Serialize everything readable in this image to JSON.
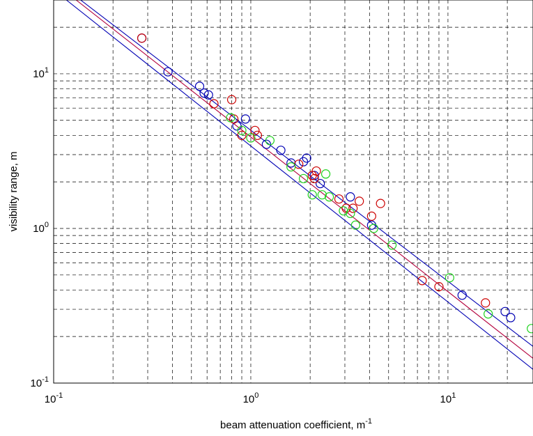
{
  "chart_data": {
    "type": "scatter",
    "xscale": "log",
    "yscale": "log",
    "xlim": [
      0.1,
      27
    ],
    "ylim": [
      0.1,
      30
    ],
    "grid": true,
    "grid_style": "dashed",
    "xlabel": {
      "text": "beam attenuation coefficient, m",
      "sup": "-1"
    },
    "ylabel": "visibility range, m",
    "x_ticks": [
      {
        "base": "10",
        "exp": "-1",
        "value": 0.1
      },
      {
        "base": "10",
        "exp": "0",
        "value": 1
      },
      {
        "base": "10",
        "exp": "1",
        "value": 10
      }
    ],
    "y_ticks": [
      {
        "base": "10",
        "exp": "-1",
        "value": 0.1
      },
      {
        "base": "10",
        "exp": "0",
        "value": 1
      },
      {
        "base": "10",
        "exp": "1",
        "value": 10
      }
    ],
    "series": [
      {
        "color": "#0000b4",
        "points": [
          [
            0.28,
            17.0
          ],
          [
            0.38,
            10.3
          ],
          [
            0.55,
            8.3
          ],
          [
            0.58,
            7.5
          ],
          [
            0.61,
            7.3
          ],
          [
            0.85,
            4.6
          ],
          [
            0.94,
            5.1
          ],
          [
            1.2,
            3.5
          ],
          [
            1.42,
            3.2
          ],
          [
            1.6,
            2.65
          ],
          [
            1.85,
            2.7
          ],
          [
            1.92,
            2.85
          ],
          [
            2.1,
            2.2
          ],
          [
            2.25,
            1.95
          ],
          [
            3.2,
            1.6
          ],
          [
            4.1,
            1.05
          ],
          [
            11.8,
            0.37
          ],
          [
            19.5,
            0.29
          ],
          [
            20.8,
            0.265
          ]
        ]
      },
      {
        "color": "#cc0000",
        "points": [
          [
            0.28,
            17.0
          ],
          [
            0.65,
            6.4
          ],
          [
            0.8,
            6.8
          ],
          [
            0.82,
            5.1
          ],
          [
            0.9,
            4.0
          ],
          [
            1.05,
            4.3
          ],
          [
            1.08,
            4.0
          ],
          [
            1.75,
            2.6
          ],
          [
            2.05,
            2.2
          ],
          [
            2.1,
            2.1
          ],
          [
            2.15,
            2.35
          ],
          [
            2.8,
            1.55
          ],
          [
            3.05,
            1.35
          ],
          [
            3.3,
            1.35
          ],
          [
            3.55,
            1.5
          ],
          [
            4.1,
            1.2
          ],
          [
            4.55,
            1.45
          ],
          [
            7.4,
            0.46
          ],
          [
            9.0,
            0.42
          ],
          [
            15.5,
            0.33
          ]
        ]
      },
      {
        "color": "#1ed21e",
        "points": [
          [
            0.79,
            5.2
          ],
          [
            0.9,
            4.3
          ],
          [
            1.0,
            3.85
          ],
          [
            1.25,
            3.7
          ],
          [
            1.6,
            2.5
          ],
          [
            1.85,
            2.1
          ],
          [
            2.05,
            1.65
          ],
          [
            2.3,
            1.65
          ],
          [
            2.4,
            2.25
          ],
          [
            2.5,
            1.6
          ],
          [
            2.95,
            1.3
          ],
          [
            3.2,
            1.25
          ],
          [
            3.4,
            1.05
          ],
          [
            4.2,
            1.0
          ],
          [
            5.2,
            0.78
          ],
          [
            10.2,
            0.48
          ],
          [
            16.0,
            0.28
          ],
          [
            26.5,
            0.225
          ]
        ]
      }
    ],
    "lines": [
      {
        "color": "#0000b4",
        "points": [
          [
            0.137,
            30
          ],
          [
            27,
            0.1726
          ]
        ]
      },
      {
        "color": "#b4003c",
        "points": [
          [
            0.13,
            30
          ],
          [
            27,
            0.1445
          ]
        ]
      },
      {
        "color": "#0000b4",
        "points": [
          [
            0.116,
            30
          ],
          [
            27,
            0.1227
          ]
        ]
      }
    ]
  }
}
